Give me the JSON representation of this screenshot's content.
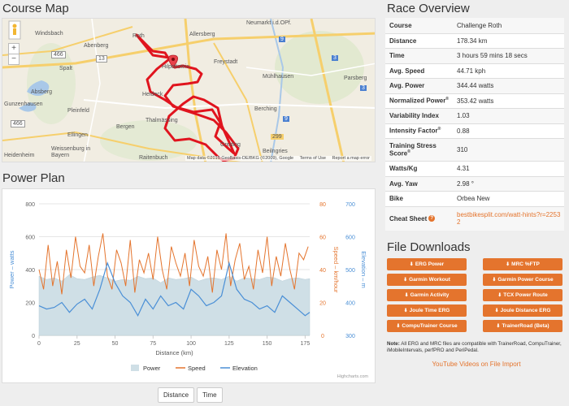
{
  "course_map": {
    "title": "Course Map",
    "zoom_in": "+",
    "zoom_out": "−",
    "labels": [
      "Roth",
      "Allersberg",
      "Neumarkt i.d.OPf.",
      "Windsbach",
      "Abenberg",
      "Spalt",
      "Absberg",
      "Gunzenhausen",
      "Pleinfeld",
      "Ellingen",
      "Weissenburg in Bayern",
      "Heideck",
      "Thalmässing",
      "Hilpoltstein",
      "Freystadt",
      "Mühlhausen",
      "Berching",
      "Greding",
      "Bergen",
      "Raitenbuch",
      "Heidenheim",
      "Beilngries",
      "Parsberg"
    ],
    "road_badges": [
      "466",
      "466",
      "13",
      "3",
      "3",
      "299",
      "9",
      "9"
    ],
    "attribution": "Map data ©2015 GeoBasis-DE/BKG (©2009), Google",
    "terms": "Terms of Use",
    "report": "Report a map error"
  },
  "power_plan": {
    "title": "Power Plan",
    "buttons": [
      "Distance",
      "Time"
    ],
    "credit": "Highcharts.com"
  },
  "chart_data": {
    "type": "line",
    "title": "",
    "xlabel": "Distance (km)",
    "xlim": [
      0,
      178
    ],
    "x_ticks": [
      0,
      25,
      50,
      75,
      100,
      125,
      150,
      175
    ],
    "y_axes": [
      {
        "label": "Power – watts",
        "range": [
          0,
          800
        ],
        "ticks": [
          0,
          200,
          400,
          600,
          800
        ],
        "color": "#4a8fd6"
      },
      {
        "label": "Speed – km/hour",
        "range": [
          0,
          80
        ],
        "ticks": [
          0,
          20,
          40,
          60,
          80
        ],
        "color": "#e4742d"
      },
      {
        "label": "Elevation – m",
        "range": [
          300,
          700
        ],
        "ticks": [
          300,
          400,
          500,
          600,
          700
        ],
        "color": "#4a8fd6"
      }
    ],
    "series": [
      {
        "name": "Power",
        "type": "area",
        "color": "#cfdfe6",
        "x": [
          0,
          5,
          10,
          15,
          20,
          25,
          30,
          35,
          40,
          45,
          50,
          55,
          60,
          65,
          70,
          75,
          80,
          85,
          90,
          95,
          100,
          105,
          110,
          115,
          120,
          125,
          130,
          135,
          140,
          145,
          150,
          155,
          160,
          165,
          170,
          175,
          178
        ],
        "values": [
          360,
          340,
          350,
          330,
          370,
          345,
          340,
          355,
          365,
          350,
          330,
          340,
          335,
          360,
          345,
          350,
          320,
          350,
          340,
          345,
          355,
          330,
          345,
          350,
          340,
          360,
          330,
          350,
          345,
          340,
          355,
          350,
          330,
          345,
          350,
          340,
          345
        ]
      },
      {
        "name": "Speed",
        "type": "line",
        "color": "#e4742d",
        "x": [
          0,
          3,
          6,
          9,
          12,
          15,
          18,
          21,
          24,
          27,
          30,
          33,
          36,
          39,
          42,
          45,
          48,
          51,
          54,
          57,
          60,
          63,
          66,
          69,
          72,
          75,
          78,
          81,
          84,
          87,
          90,
          93,
          96,
          99,
          102,
          105,
          108,
          111,
          114,
          117,
          120,
          123,
          126,
          129,
          132,
          135,
          138,
          141,
          144,
          147,
          150,
          153,
          156,
          159,
          162,
          165,
          168,
          171,
          174,
          177
        ],
        "values": [
          40,
          28,
          55,
          30,
          45,
          25,
          52,
          35,
          60,
          42,
          38,
          55,
          30,
          48,
          62,
          36,
          28,
          52,
          44,
          30,
          58,
          26,
          46,
          38,
          50,
          34,
          60,
          40,
          28,
          54,
          44,
          36,
          50,
          30,
          58,
          42,
          36,
          48,
          26,
          52,
          40,
          62,
          30,
          46,
          56,
          34,
          42,
          28,
          52,
          38,
          60,
          30,
          48,
          36,
          56,
          40,
          28,
          50,
          46,
          54
        ]
      },
      {
        "name": "Elevation",
        "type": "line",
        "color": "#4a8fd6",
        "x": [
          0,
          5,
          10,
          15,
          20,
          25,
          30,
          35,
          40,
          45,
          50,
          55,
          60,
          65,
          70,
          75,
          80,
          85,
          90,
          95,
          100,
          105,
          110,
          115,
          120,
          125,
          130,
          135,
          140,
          145,
          150,
          155,
          160,
          165,
          170,
          175,
          178
        ],
        "values": [
          390,
          380,
          385,
          400,
          370,
          395,
          410,
          380,
          440,
          520,
          460,
          420,
          400,
          360,
          410,
          380,
          420,
          390,
          400,
          380,
          440,
          420,
          390,
          400,
          420,
          520,
          440,
          410,
          400,
          380,
          390,
          370,
          420,
          400,
          380,
          360,
          370
        ]
      }
    ],
    "legend": [
      "Power",
      "Speed",
      "Elevation"
    ],
    "legend_position": "bottom-center",
    "grid": true
  },
  "race_overview": {
    "title": "Race Overview",
    "rows": [
      {
        "key": "Course",
        "value": "Challenge Roth"
      },
      {
        "key": "Distance",
        "value": "178.34 km"
      },
      {
        "key": "Time",
        "value": "3 hours 59 mins 18 secs"
      },
      {
        "key": "Avg. Speed",
        "value": "44.71 kph"
      },
      {
        "key": "Avg. Power",
        "value": "344.44 watts"
      },
      {
        "key": "Normalized Power",
        "sup": "®",
        "value": "353.42 watts"
      },
      {
        "key": "Variability Index",
        "value": "1.03"
      },
      {
        "key": "Intensity Factor",
        "sup": "®",
        "value": "0.88"
      },
      {
        "key": "Training Stress Score",
        "sup": "®",
        "value": "310"
      },
      {
        "key": "Watts/Kg",
        "value": "4.31"
      },
      {
        "key": "Avg. Yaw",
        "value": "2.98 °"
      },
      {
        "key": "Bike",
        "value": "Orbea New"
      }
    ],
    "cheat_sheet": {
      "key": "Cheat Sheet",
      "value": "bestbikesplit.com/watt-hints?r=22532"
    }
  },
  "file_downloads": {
    "title": "File Downloads",
    "buttons": [
      "ERG Power",
      "MRC %FTP",
      "Garmin Workout",
      "Garmin Power Course",
      "Garmin Activity",
      "TCX Power Route",
      "Joule Time ERG",
      "Joule Distance ERG",
      "CompuTrainer Course",
      "TrainerRoad (Beta)"
    ],
    "note_label": "Note:",
    "note": "All ERG and MRC files are compatible with TrainerRoad, CompuTrainer, iMobileIntervals, perfPRO and PeriPedal.",
    "youtube_link": "YouTube Videos on File Import"
  },
  "colors": {
    "accent": "#e4742d",
    "route": "#e0141e"
  }
}
